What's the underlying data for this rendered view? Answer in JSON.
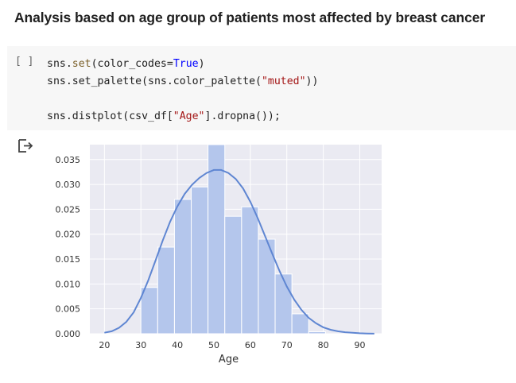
{
  "heading": "Analysis based on age group of patients most affected by breast cancer",
  "cell": {
    "run_indicator": "[ ]",
    "lines": [
      [
        {
          "t": "sns."
        },
        {
          "t": "set",
          "c": "fn"
        },
        {
          "t": "(color_codes="
        },
        {
          "t": "True",
          "c": "kw"
        },
        {
          "t": ")"
        }
      ],
      [
        {
          "t": "sns.set_palette(sns.color_palette("
        },
        {
          "t": "\"muted\"",
          "c": "str"
        },
        {
          "t": "))"
        }
      ],
      [],
      [
        {
          "t": "sns.distplot(csv_df["
        },
        {
          "t": "\"Age\"",
          "c": "str"
        },
        {
          "t": "].dropna());"
        }
      ]
    ]
  },
  "output_icon": "output-arrow-icon",
  "chart_data": {
    "type": "bar",
    "subtype": "histogram-with-kde",
    "xlabel": "Age",
    "ylabel": "",
    "xlim": [
      16,
      96
    ],
    "ylim": [
      0,
      0.038
    ],
    "xticks": [
      20,
      30,
      40,
      50,
      60,
      70,
      80,
      90
    ],
    "yticks": [
      0.0,
      0.005,
      0.01,
      0.015,
      0.02,
      0.025,
      0.03,
      0.035
    ],
    "ytick_labels": [
      "0.000",
      "0.005",
      "0.010",
      "0.015",
      "0.020",
      "0.025",
      "0.030",
      "0.035"
    ],
    "bins": [
      {
        "x0": 30,
        "x1": 34.6,
        "value": 0.0093
      },
      {
        "x0": 34.6,
        "x1": 39.2,
        "value": 0.0174
      },
      {
        "x0": 39.2,
        "x1": 43.8,
        "value": 0.027
      },
      {
        "x0": 43.8,
        "x1": 48.4,
        "value": 0.0295
      },
      {
        "x0": 48.4,
        "x1": 53.0,
        "value": 0.038
      },
      {
        "x0": 53.0,
        "x1": 57.6,
        "value": 0.0236
      },
      {
        "x0": 57.6,
        "x1": 62.2,
        "value": 0.0255
      },
      {
        "x0": 62.2,
        "x1": 66.8,
        "value": 0.019
      },
      {
        "x0": 66.8,
        "x1": 71.4,
        "value": 0.012
      },
      {
        "x0": 71.4,
        "x1": 76.0,
        "value": 0.004
      },
      {
        "x0": 76.0,
        "x1": 80.6,
        "value": 0.0004
      }
    ],
    "kde": {
      "x": [
        20,
        22,
        24,
        26,
        28,
        30,
        32,
        34,
        36,
        38,
        40,
        42,
        44,
        46,
        48,
        50,
        52,
        54,
        56,
        58,
        60,
        62,
        64,
        66,
        68,
        70,
        72,
        74,
        76,
        78,
        80,
        82,
        84,
        86,
        88,
        90,
        92,
        94
      ],
      "y": [
        0.0002,
        0.0005,
        0.0012,
        0.0024,
        0.0043,
        0.0072,
        0.0107,
        0.0147,
        0.0188,
        0.0225,
        0.0256,
        0.0281,
        0.0299,
        0.0313,
        0.0323,
        0.0329,
        0.0329,
        0.0323,
        0.0311,
        0.0292,
        0.0265,
        0.0233,
        0.0197,
        0.0161,
        0.0126,
        0.0095,
        0.0069,
        0.0048,
        0.0032,
        0.0021,
        0.0013,
        0.0008,
        0.0005,
        0.0003,
        0.0002,
        0.0001,
        5e-05,
        2e-05
      ]
    },
    "grid": true,
    "colors": {
      "bar_fill": "#b4c6ec",
      "bar_stroke": "#ffffff",
      "kde_line": "#5f86d2",
      "plot_bg": "#eaeaf2",
      "grid": "#ffffff"
    }
  }
}
